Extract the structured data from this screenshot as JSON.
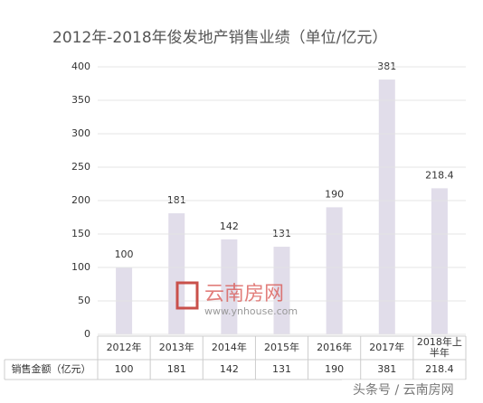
{
  "chart_data": {
    "type": "bar",
    "title": "2012年-2018年俊发地产销售业绩（单位/亿元）",
    "categories": [
      "2012年",
      "2013年",
      "2014年",
      "2015年",
      "2016年",
      "2017年",
      "2018年上半年"
    ],
    "series": [
      {
        "name": "销售金额（亿元）",
        "color": "#e1ddea",
        "values": [
          100,
          181,
          142,
          131,
          190,
          381,
          218.4
        ]
      }
    ],
    "ylim": [
      0,
      400
    ],
    "yticks": [
      0,
      50,
      100,
      150,
      200,
      250,
      300,
      350,
      400
    ],
    "grid": true,
    "annotations": [
      "云南房网",
      "www.ynhouse.com",
      "头条号 / 云南房网"
    ]
  }
}
